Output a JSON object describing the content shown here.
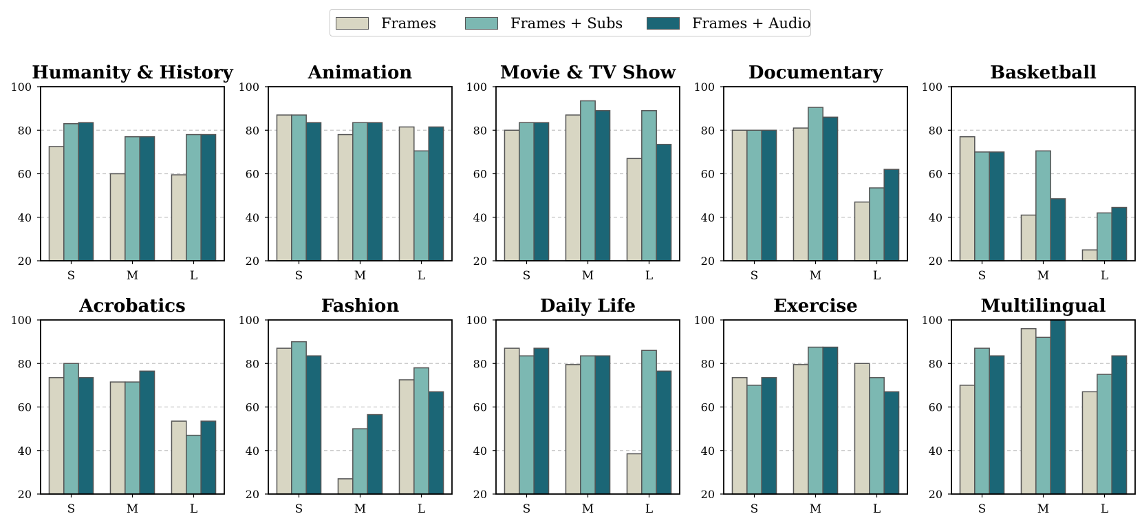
{
  "legend": {
    "items": [
      {
        "label": "Frames",
        "color": "#d8d6c3"
      },
      {
        "label": "Frames + Subs",
        "color": "#7cb8b2"
      },
      {
        "label": "Frames + Audio",
        "color": "#1b6676"
      }
    ]
  },
  "chart_data": [
    {
      "type": "bar",
      "title": "Humanity & History",
      "categories": [
        "S",
        "M",
        "L"
      ],
      "ylim": [
        20,
        100
      ],
      "yticks": [
        20,
        40,
        60,
        80,
        100
      ],
      "grid": true,
      "series": [
        {
          "name": "Frames",
          "values": [
            72.5,
            60,
            59.5
          ]
        },
        {
          "name": "Frames + Subs",
          "values": [
            83,
            77,
            78
          ]
        },
        {
          "name": "Frames + Audio",
          "values": [
            83.5,
            77,
            78
          ]
        }
      ]
    },
    {
      "type": "bar",
      "title": "Animation",
      "categories": [
        "S",
        "M",
        "L"
      ],
      "ylim": [
        20,
        100
      ],
      "yticks": [
        20,
        40,
        60,
        80,
        100
      ],
      "grid": true,
      "series": [
        {
          "name": "Frames",
          "values": [
            87,
            78,
            81.5
          ]
        },
        {
          "name": "Frames + Subs",
          "values": [
            87,
            83.5,
            70.5
          ]
        },
        {
          "name": "Frames + Audio",
          "values": [
            83.5,
            83.5,
            81.5
          ]
        }
      ]
    },
    {
      "type": "bar",
      "title": "Movie & TV Show",
      "categories": [
        "S",
        "M",
        "L"
      ],
      "ylim": [
        20,
        100
      ],
      "yticks": [
        20,
        40,
        60,
        80,
        100
      ],
      "grid": true,
      "series": [
        {
          "name": "Frames",
          "values": [
            80,
            87,
            67
          ]
        },
        {
          "name": "Frames + Subs",
          "values": [
            83.5,
            93.5,
            89
          ]
        },
        {
          "name": "Frames + Audio",
          "values": [
            83.5,
            89,
            73.5
          ]
        }
      ]
    },
    {
      "type": "bar",
      "title": "Documentary",
      "categories": [
        "S",
        "M",
        "L"
      ],
      "ylim": [
        20,
        100
      ],
      "yticks": [
        20,
        40,
        60,
        80,
        100
      ],
      "grid": true,
      "series": [
        {
          "name": "Frames",
          "values": [
            80,
            81,
            47
          ]
        },
        {
          "name": "Frames + Subs",
          "values": [
            80,
            90.5,
            53.5
          ]
        },
        {
          "name": "Frames + Audio",
          "values": [
            80,
            86,
            62
          ]
        }
      ]
    },
    {
      "type": "bar",
      "title": "Basketball",
      "categories": [
        "S",
        "M",
        "L"
      ],
      "ylim": [
        20,
        100
      ],
      "yticks": [
        20,
        40,
        60,
        80,
        100
      ],
      "grid": true,
      "series": [
        {
          "name": "Frames",
          "values": [
            77,
            41,
            25
          ]
        },
        {
          "name": "Frames + Subs",
          "values": [
            70,
            70.5,
            42
          ]
        },
        {
          "name": "Frames + Audio",
          "values": [
            70,
            48.5,
            44.5
          ]
        }
      ]
    },
    {
      "type": "bar",
      "title": "Acrobatics",
      "categories": [
        "S",
        "M",
        "L"
      ],
      "ylim": [
        20,
        100
      ],
      "yticks": [
        20,
        40,
        60,
        80,
        100
      ],
      "grid": true,
      "series": [
        {
          "name": "Frames",
          "values": [
            73.5,
            71.5,
            53.5
          ]
        },
        {
          "name": "Frames + Subs",
          "values": [
            80,
            71.5,
            47
          ]
        },
        {
          "name": "Frames + Audio",
          "values": [
            73.5,
            76.5,
            53.5
          ]
        }
      ]
    },
    {
      "type": "bar",
      "title": "Fashion",
      "categories": [
        "S",
        "M",
        "L"
      ],
      "ylim": [
        20,
        100
      ],
      "yticks": [
        20,
        40,
        60,
        80,
        100
      ],
      "grid": true,
      "series": [
        {
          "name": "Frames",
          "values": [
            87,
            27,
            72.5
          ]
        },
        {
          "name": "Frames + Subs",
          "values": [
            90,
            50,
            78
          ]
        },
        {
          "name": "Frames + Audio",
          "values": [
            83.5,
            56.5,
            67
          ]
        }
      ]
    },
    {
      "type": "bar",
      "title": "Daily Life",
      "categories": [
        "S",
        "M",
        "L"
      ],
      "ylim": [
        20,
        100
      ],
      "yticks": [
        20,
        40,
        60,
        80,
        100
      ],
      "grid": true,
      "series": [
        {
          "name": "Frames",
          "values": [
            87,
            79.5,
            38.5
          ]
        },
        {
          "name": "Frames + Subs",
          "values": [
            83.5,
            83.5,
            86
          ]
        },
        {
          "name": "Frames + Audio",
          "values": [
            87,
            83.5,
            76.5
          ]
        }
      ]
    },
    {
      "type": "bar",
      "title": "Exercise",
      "categories": [
        "S",
        "M",
        "L"
      ],
      "ylim": [
        20,
        100
      ],
      "yticks": [
        20,
        40,
        60,
        80,
        100
      ],
      "grid": true,
      "series": [
        {
          "name": "Frames",
          "values": [
            73.5,
            79.5,
            80
          ]
        },
        {
          "name": "Frames + Subs",
          "values": [
            70,
            87.5,
            73.5
          ]
        },
        {
          "name": "Frames + Audio",
          "values": [
            73.5,
            87.5,
            67
          ]
        }
      ]
    },
    {
      "type": "bar",
      "title": "Multilingual",
      "categories": [
        "S",
        "M",
        "L"
      ],
      "ylim": [
        20,
        100
      ],
      "yticks": [
        20,
        40,
        60,
        80,
        100
      ],
      "grid": true,
      "series": [
        {
          "name": "Frames",
          "values": [
            70,
            96,
            67
          ]
        },
        {
          "name": "Frames + Subs",
          "values": [
            87,
            92,
            75
          ]
        },
        {
          "name": "Frames + Audio",
          "values": [
            83.5,
            100,
            83.5
          ]
        }
      ]
    }
  ]
}
